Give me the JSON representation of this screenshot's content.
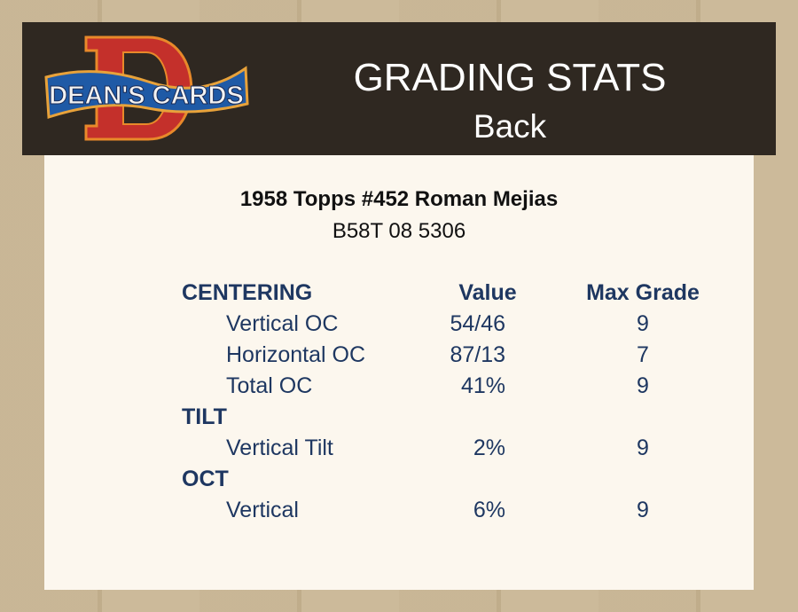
{
  "header": {
    "logo_text": "DEAN'S CARDS",
    "title": "GRADING STATS",
    "subtitle": "Back"
  },
  "card": {
    "name": "1958 Topps #452 Roman Mejias",
    "code": "B58T 08 5306"
  },
  "columns": {
    "section": "CENTERING",
    "value": "Value",
    "max_grade": "Max Grade"
  },
  "rows": [
    {
      "label": "Vertical OC",
      "value": "54/46",
      "max": "9"
    },
    {
      "label": "Horizontal OC",
      "value": "87/13",
      "max": "7"
    },
    {
      "label": "Total OC",
      "value": "41%",
      "max": "9"
    },
    {
      "section": "TILT"
    },
    {
      "label": "Vertical Tilt",
      "value": "2%",
      "max": "9"
    },
    {
      "section": "OCT"
    },
    {
      "label": "Vertical",
      "value": "6%",
      "max": "9"
    }
  ],
  "colors": {
    "header_bg": "#2f2821",
    "panel_bg": "#fcf7ee",
    "text": "#1e3761"
  }
}
